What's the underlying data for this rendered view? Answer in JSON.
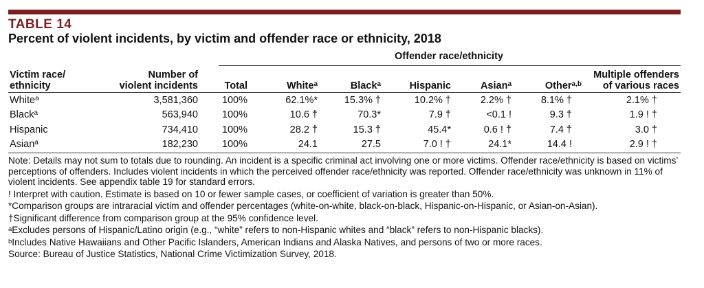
{
  "colors": {
    "accent": "#7a1f1f"
  },
  "table_label": "TABLE 14",
  "title": "Percent of violent incidents, by victim and offender race or ethnicity, 2018",
  "span_header": "Offender race/ethnicity",
  "headers": {
    "victim_line1": "Victim race/",
    "victim_line2": "ethnicity",
    "number_line1": "Number of",
    "number_line2": "violent incidents",
    "total": "Total",
    "white": "White",
    "white_sup": "a",
    "black": "Black",
    "black_sup": "a",
    "hispanic": "Hispanic",
    "asian": "Asian",
    "asian_sup": "a",
    "other": "Other",
    "other_sup": "a,b",
    "multiple_line1": "Multiple offenders",
    "multiple_line2": "of various races"
  },
  "rows": [
    {
      "label": "White",
      "sup": "a",
      "number": "3,581,360",
      "total": "100%",
      "white": "62.1%*",
      "black": "15.3% †",
      "hispanic": "10.2% †",
      "asian": "2.2% †",
      "other": "8.1% †",
      "multiple": "2.1% †"
    },
    {
      "label": "Black",
      "sup": "a",
      "number": "563,940",
      "total": "100%",
      "white": "10.6 †",
      "black": "70.3*",
      "hispanic": "7.9 †",
      "asian": "<0.1 !",
      "other": "9.3 †",
      "multiple": "1.9 ! †"
    },
    {
      "label": "Hispanic",
      "sup": "",
      "number": "734,410",
      "total": "100%",
      "white": "28.2 †",
      "black": "15.3 †",
      "hispanic": "45.4*",
      "asian": "0.6 ! †",
      "other": "7.4 †",
      "multiple": "3.0 †"
    },
    {
      "label": "Asian",
      "sup": "a",
      "number": "182,230",
      "total": "100%",
      "white": "24.1",
      "black": "27.5",
      "hispanic": "7.0 ! †",
      "asian": "24.1*",
      "other": "14.4 !",
      "multiple": "2.9 ! †"
    }
  ],
  "notes": {
    "main": "Note: Details may not sum to totals due to rounding. An incident is a specific criminal act involving one or more victims. Offender race/ethnicity is based on victims’ perceptions of offenders. Includes violent incidents in which the perceived offender race/ethnicity was reported. Offender race/ethnicity was unknown in 11% of violent incidents. See appendix table 19 for standard errors.",
    "caution": "! Interpret with caution. Estimate is based on 10 or fewer sample cases, or coefficient of variation is greater than 50%.",
    "comparison": "*Comparison groups are intraracial victim and offender percentages (white-on-white, black-on-black, Hispanic-on-Hispanic, or Asian-on-Asian).",
    "significant": "†Significant difference from comparison group at the 95% confidence level.",
    "fn_a_sup": "a",
    "fn_a": "Excludes persons of Hispanic/Latino origin (e.g., “white” refers to non-Hispanic whites and “black” refers to non-Hispanic blacks).",
    "fn_b_sup": "b",
    "fn_b": "Includes Native Hawaiians and Other Pacific Islanders, American Indians and Alaska Natives, and persons of two or more races.",
    "source": "Source: Bureau of Justice Statistics, National Crime Victimization Survey, 2018."
  }
}
